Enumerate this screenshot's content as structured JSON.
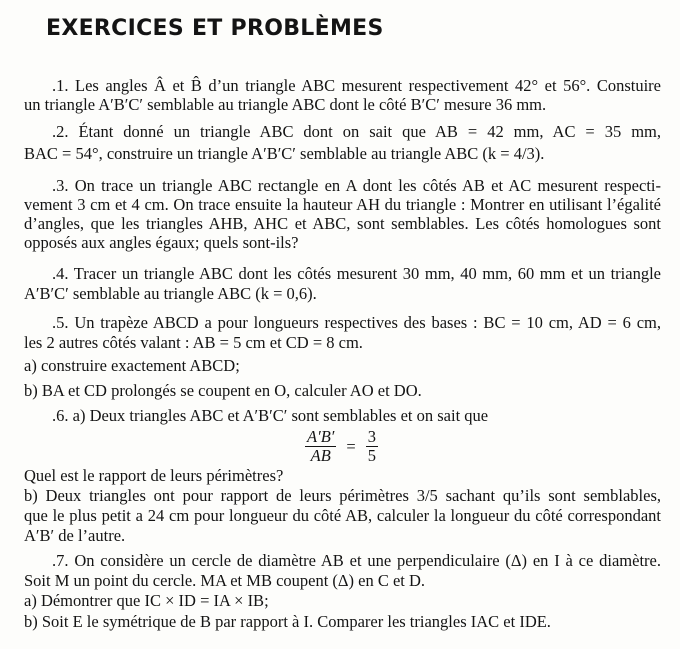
{
  "title": "EXERCICES ET PROBLÈMES",
  "exercises": [
    {
      "lines": [
        ".1. Les angles Â et B̂ d’un triangle ABC mesurent respectivement 42° et 56°. Constuire",
        "un triangle A′B′C′ semblable au triangle ABC dont le côté B′C′ mesure 36 mm."
      ]
    },
    {
      "lines": [
        ".2. Étant donné un triangle ABC dont on sait que AB = 42 mm, AC = 35 mm,",
        "BAC = 54°, construire un triangle A′B′C′ semblable au triangle ABC (k = 4/3)."
      ]
    },
    {
      "lines": [
        ".3. On trace un triangle ABC rectangle en A dont les côtés AB et AC mesurent respecti-",
        "vement 3 cm et 4 cm. On trace ensuite la hauteur AH du triangle : Montrer en utilisant l’égalité",
        "d’angles, que les triangles AHB, AHC et ABC, sont semblables. Les côtés homologues sont",
        "opposés aux angles égaux; quels sont-ils?"
      ]
    },
    {
      "lines": [
        ".4. Tracer un triangle ABC dont les côtés mesurent 30 mm, 40 mm, 60 mm et un triangle",
        "A′B′C′ semblable au triangle ABC (k = 0,6)."
      ]
    },
    {
      "lines": [
        ".5. Un trapèze ABCD a pour longueurs respectives des bases : BC = 10 cm, AD = 6 cm,",
        "les 2 autres côtés valant : AB = 5 cm et CD = 8 cm.",
        "a) construire exactement ABCD;",
        "b) BA et CD prolongés se coupent en O, calculer AO et DO."
      ]
    },
    {
      "lines": [
        ".6. a) Deux triangles ABC et A′B′C′ sont semblables et on sait que",
        "Quel est le rapport de leurs périmètres?",
        "b) Deux triangles ont pour rapport de leurs périmètres 3/5 sachant qu’ils sont semblables,",
        "que le plus petit a 24 cm pour longueur du côté AB, calculer la longueur du côté correspondant",
        "A′B′ de l’autre."
      ],
      "fraction": {
        "num1": "A′B′",
        "den1": "AB",
        "equals": "=",
        "num2": "3",
        "den2": "5"
      }
    },
    {
      "lines": [
        ".7. On considère un cercle de diamètre AB et une perpendiculaire (Δ) en I à ce diamètre.",
        "Soit M un point du cercle. MA et MB coupent (Δ) en C et D.",
        "a) Démontrer que IC × ID = IA × IB;",
        "b) Soit E le symétrique de B par rapport à I. Comparer les triangles IAC et IDE."
      ]
    }
  ]
}
